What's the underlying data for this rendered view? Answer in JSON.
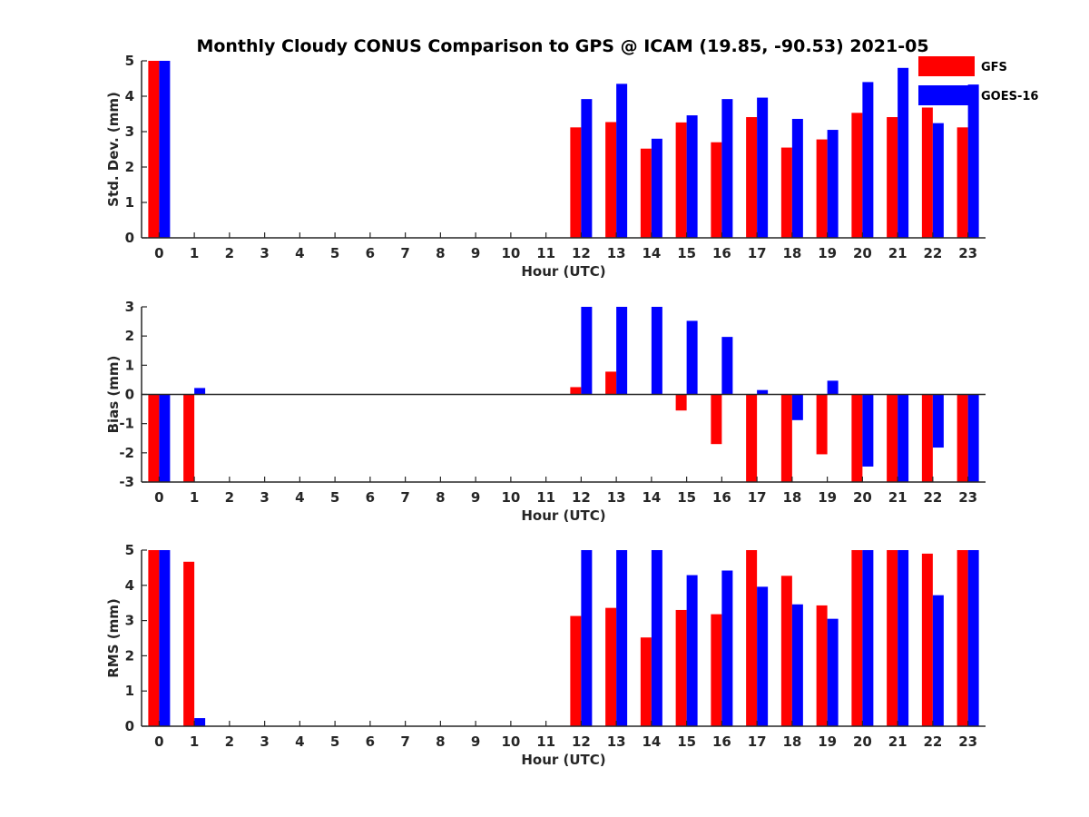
{
  "chart_data": {
    "type": "bar",
    "title": "Monthly Cloudy CONUS Comparison to GPS @ ICAM (19.85, -90.53) 2021-05",
    "categories": [
      "0",
      "1",
      "2",
      "3",
      "4",
      "5",
      "6",
      "7",
      "8",
      "9",
      "10",
      "11",
      "12",
      "13",
      "14",
      "15",
      "16",
      "17",
      "18",
      "19",
      "20",
      "21",
      "22",
      "23"
    ],
    "legend": {
      "position": "top-right",
      "entries": [
        {
          "name": "GFS",
          "color": "#ff0000"
        },
        {
          "name": "GOES-16",
          "color": "#0000ff"
        }
      ]
    },
    "panels": [
      {
        "name": "std",
        "xlabel": "Hour (UTC)",
        "ylabel": "Std. Dev. (mm)",
        "ylim": [
          0,
          5
        ],
        "yticks": [
          "0",
          "1",
          "2",
          "3",
          "4",
          "5"
        ],
        "series": [
          {
            "name": "GFS",
            "color": "#ff0000",
            "values": [
              5,
              null,
              null,
              null,
              null,
              null,
              null,
              null,
              null,
              null,
              null,
              null,
              3.12,
              3.27,
              2.52,
              3.26,
              2.7,
              3.41,
              2.55,
              2.78,
              3.53,
              3.41,
              3.68,
              3.12
            ]
          },
          {
            "name": "GOES-16",
            "color": "#0000ff",
            "values": [
              5,
              null,
              null,
              null,
              null,
              null,
              null,
              null,
              null,
              null,
              null,
              null,
              3.92,
              4.35,
              2.8,
              3.46,
              3.92,
              3.96,
              3.36,
              3.05,
              4.4,
              4.8,
              3.24,
              4.33
            ]
          }
        ]
      },
      {
        "name": "bias",
        "xlabel": "Hour (UTC)",
        "ylabel": "Bias (mm)",
        "ylim": [
          -3,
          3
        ],
        "yticks": [
          "-3",
          "-2",
          "-1",
          "0",
          "1",
          "2",
          "3"
        ],
        "series": [
          {
            "name": "GFS",
            "color": "#ff0000",
            "values": [
              -3,
              -3,
              null,
              null,
              null,
              null,
              null,
              null,
              null,
              null,
              null,
              null,
              0.25,
              0.78,
              null,
              -0.55,
              -1.7,
              -3,
              -3,
              -2.05,
              -3,
              -3,
              -3,
              -3
            ]
          },
          {
            "name": "GOES-16",
            "color": "#0000ff",
            "values": [
              -3,
              0.22,
              null,
              null,
              null,
              null,
              null,
              null,
              null,
              null,
              null,
              null,
              3,
              3,
              3,
              2.52,
              1.97,
              0.15,
              -0.88,
              0.47,
              -2.47,
              -3,
              -1.82,
              -3
            ]
          }
        ]
      },
      {
        "name": "rms",
        "xlabel": "Hour (UTC)",
        "ylabel": "RMS (mm)",
        "ylim": [
          0,
          5
        ],
        "yticks": [
          "0",
          "1",
          "2",
          "3",
          "4",
          "5"
        ],
        "series": [
          {
            "name": "GFS",
            "color": "#ff0000",
            "values": [
              5,
              4.67,
              null,
              null,
              null,
              null,
              null,
              null,
              null,
              null,
              null,
              null,
              3.13,
              3.36,
              2.52,
              3.3,
              3.18,
              5,
              4.27,
              3.43,
              5,
              5,
              4.9,
              5
            ]
          },
          {
            "name": "GOES-16",
            "color": "#0000ff",
            "values": [
              5,
              0.23,
              null,
              null,
              null,
              null,
              null,
              null,
              null,
              null,
              null,
              null,
              5,
              5,
              5,
              4.29,
              4.42,
              3.96,
              3.46,
              3.05,
              5,
              5,
              3.72,
              5
            ]
          }
        ]
      }
    ]
  }
}
